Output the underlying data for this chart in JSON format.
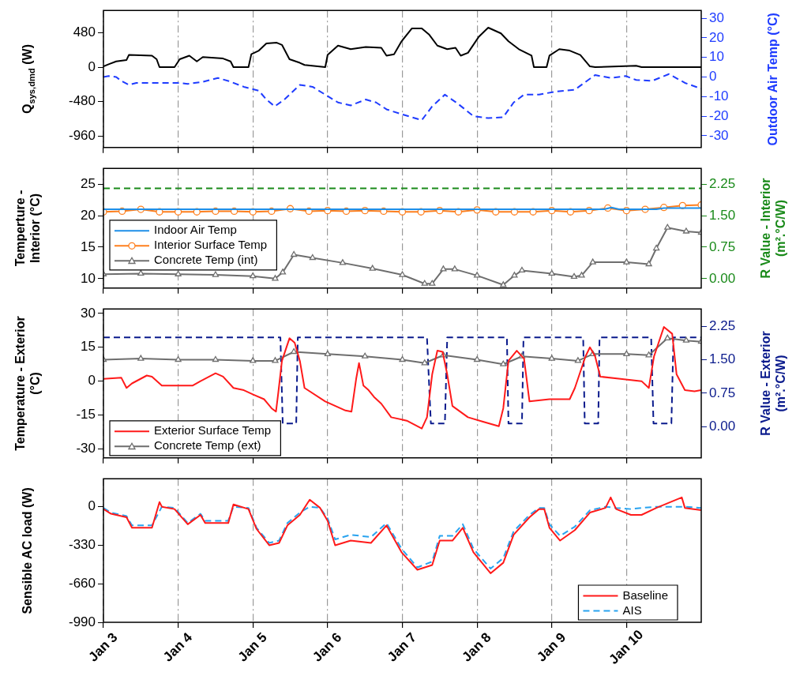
{
  "chart_data": [
    {
      "type": "line",
      "ylabel": "Q$_{sys,dmd}$ (W)",
      "y2label": "Outdoor Air Temp (°C)",
      "xlim": [
        "--01-03",
        "--01-11"
      ],
      "xticks": [
        {
          "value": "--01-03",
          "label": null
        },
        {
          "value": "--01-04",
          "label": null
        },
        {
          "value": "--01-05",
          "label": null
        },
        {
          "value": "--01-06",
          "label": null
        },
        {
          "value": "--01-07",
          "label": null
        },
        {
          "value": "--01-08",
          "label": null
        },
        {
          "value": "--01-09",
          "label": null
        },
        {
          "value": "--01-10",
          "label": null
        }
      ],
      "ylim": [
        -1120,
        790
      ],
      "yticks": [
        -960,
        -480,
        0,
        480
      ],
      "y2lim": [
        -36,
        34
      ],
      "y2ticks": [
        -30,
        -20,
        -10,
        0,
        10,
        20,
        30
      ],
      "grid": "x",
      "tick_labels": "y",
      "series": [
        {
          "color": "#000000",
          "line_style": "solid",
          "x": [
            "--01-03",
            "--01-03T01:40",
            "--01-03T04:05",
            "--01-03T07:25",
            "--01-03T08:10",
            "--01-03T15:35",
            "--01-03T17:05",
            "--01-03T18:00",
            "--01-03T22:50",
            "--01-04T00:30",
            "--01-04T03:35",
            "--01-04T06:00",
            "--01-04T07:55",
            "--01-04T14:25",
            "--01-04T16:50",
            "--01-04T17:45",
            "--01-04T22:35",
            "--01-04T23:30",
            "--01-05T01:55",
            "--01-05T04:20",
            "--01-05T07:40",
            "--01-05T09:20",
            "--01-05T11:45",
            "--01-05T15:05",
            "--01-05T16:35",
            "--01-05T23:15",
            "--01-06",
            "--01-06T03:20",
            "--01-06T07:25",
            "--01-06T12:15",
            "--01-06T17:15",
            "--01-06T18:55",
            "--01-06T21:20",
            "--01-06T23:45",
            "--01-07T03:05",
            "--01-07T06:15",
            "--01-07T08:40",
            "--01-07T11:15",
            "--01-07T14:25",
            "--01-07T17:05",
            "--01-07T18:45",
            "--01-07T21:05",
            "--01-08T00:30",
            "--01-08T03:35",
            "--01-08T07:40",
            "--01-08T10:05",
            "--01-08T13:25",
            "--01-08T17:30",
            "--01-08T18:15",
            "--01-08T22:20",
            "--01-08T23:15",
            "--01-09T02:25",
            "--01-09T05:45",
            "--01-09T09:10",
            "--01-09T12:15",
            "--01-09T13:55",
            "--01-10T03:05",
            "--01-10T04:50",
            "--01-11"
          ],
          "values": [
            10,
            40,
            80,
            100,
            170,
            160,
            110,
            0,
            0,
            110,
            160,
            80,
            140,
            120,
            80,
            0,
            0,
            180,
            230,
            330,
            340,
            310,
            110,
            60,
            30,
            0,
            170,
            300,
            250,
            280,
            270,
            160,
            180,
            360,
            540,
            540,
            450,
            300,
            250,
            270,
            160,
            200,
            420,
            550,
            470,
            360,
            250,
            160,
            0,
            0,
            160,
            250,
            230,
            170,
            10,
            0,
            20,
            0,
            0
          ]
        },
        {
          "color": "#1f3cff",
          "axis": "y2",
          "line_style": "dashed",
          "x": [
            "--01-03",
            "--01-03T01:40",
            "--01-03T04:05",
            "--01-03T05:45",
            "--01-03T08:10",
            "--01-03T10:35",
            "--01-03T23:45",
            "--01-04T03:05",
            "--01-04T07:55",
            "--01-04T12:45",
            "--01-04T16:05",
            "--01-04T21:05",
            "--01-05T01:55",
            "--01-05T04:20",
            "--01-05T07:00",
            "--01-05T10:05",
            "--01-05T15:05",
            "--01-05T19:10",
            "--01-05T23:15",
            "--01-06T03:20",
            "--01-06T07:25",
            "--01-06T12:15",
            "--01-06T15:35",
            "--01-06T18:55",
            "--01-06T23:45",
            "--01-07T06:15",
            "--01-07T09:35",
            "--01-07T13:40",
            "--01-07T17:45",
            "--01-07T22:50",
            "--01-08T03:35",
            "--01-08T08:25",
            "--01-08T11:45",
            "--01-08T15:05",
            "--01-08T19:55",
            "--01-09T00:55",
            "--01-09T07:25",
            "--01-09T10:50",
            "--01-09T13:55",
            "--01-09T18:55",
            "--01-09T23:45",
            "--01-10T03:05",
            "--01-10T08:10",
            "--01-10T13:40",
            "--01-10T18:45",
            "--01-11"
          ],
          "values": [
            0,
            0.5,
            0,
            -2,
            -4,
            -3,
            -3,
            -3.5,
            -2.5,
            -0.5,
            -2,
            -5,
            -7,
            -11.5,
            -15,
            -11.5,
            -4,
            -5,
            -9,
            -13,
            -14.5,
            -11.5,
            -13,
            -16.5,
            -19,
            -22,
            -15,
            -9,
            -13.5,
            -20,
            -21,
            -20.5,
            -13,
            -9,
            -9,
            -7.5,
            -6.5,
            -2.5,
            1,
            -0.5,
            0.5,
            -1.5,
            -2,
            1.5,
            -3,
            -6
          ]
        }
      ]
    },
    {
      "type": "line",
      "ylabel": "Temperture - Interior (°C)",
      "y2label": "R Value - Interior (m².°C/W)",
      "xlim": [
        "--01-03",
        "--01-11"
      ],
      "xticks": [
        {
          "value": "--01-03",
          "label": null
        },
        {
          "value": "--01-04",
          "label": null
        },
        {
          "value": "--01-05",
          "label": null
        },
        {
          "value": "--01-06",
          "label": null
        },
        {
          "value": "--01-07",
          "label": null
        },
        {
          "value": "--01-08",
          "label": null
        },
        {
          "value": "--01-09",
          "label": null
        },
        {
          "value": "--01-10",
          "label": null
        }
      ],
      "ylim": [
        8.5,
        27.5
      ],
      "yticks": [
        10,
        15,
        20,
        25
      ],
      "y2lim": [
        -0.225,
        2.625
      ],
      "y2ticks": [
        {
          "value": 0,
          "label": "0.00"
        },
        {
          "value": 0.75,
          "label": "0.75"
        },
        {
          "value": 1.5,
          "label": "1.50"
        },
        {
          "value": 2.25,
          "label": "2.25"
        }
      ],
      "grid": "x",
      "tick_labels": "y",
      "legend": "bottom left",
      "series": [
        {
          "name": "Indoor Air Temp",
          "color": "#1e8fe8",
          "line_style": "solid",
          "marker": "none",
          "x": [
            "--01-03",
            "--01-09T16:50",
            "--01-09T19:10",
            "--01-09T21:35",
            "--01-10T09:35",
            "--01-10T12:00",
            "--01-11"
          ],
          "values": [
            21,
            21,
            21.3,
            21,
            21,
            21.2,
            21.2
          ]
        },
        {
          "name": "Interior Surface Temp",
          "color": "#ff7f1e",
          "line_style": "solid",
          "marker": "circle",
          "x": [
            "--01-03",
            "--01-03T06:00",
            "--01-03T12:00",
            "--01-03T18:00",
            "--01-04",
            "--01-04T06:00",
            "--01-04T12:00",
            "--01-04T18:00",
            "--01-05",
            "--01-05T06:00",
            "--01-05T12:00",
            "--01-05T18:00",
            "--01-06",
            "--01-06T06:00",
            "--01-06T12:00",
            "--01-06T18:00",
            "--01-07",
            "--01-07T06:00",
            "--01-07T12:00",
            "--01-07T18:00",
            "--01-08",
            "--01-08T06:00",
            "--01-08T12:00",
            "--01-08T18:00",
            "--01-09",
            "--01-09T06:00",
            "--01-09T12:00",
            "--01-09T18:00",
            "--01-10",
            "--01-10T06:00",
            "--01-10T12:00",
            "--01-10T18:00",
            "--01-11"
          ],
          "values": [
            20.6,
            20.7,
            21.0,
            20.6,
            20.6,
            20.6,
            20.7,
            20.7,
            20.6,
            20.7,
            21.1,
            20.7,
            20.8,
            20.7,
            20.8,
            20.7,
            20.6,
            20.6,
            20.8,
            20.6,
            20.9,
            20.6,
            20.6,
            20.6,
            20.8,
            20.6,
            20.8,
            21.2,
            20.8,
            21.0,
            21.3,
            21.6,
            21.7
          ]
        },
        {
          "name": "Concrete Temp (int)",
          "color": "#6e6e6e",
          "line_style": "solid",
          "marker": "triangle",
          "x": [
            "--01-03",
            "--01-03T12:00",
            "--01-04",
            "--01-04T12:00",
            "--01-05",
            "--01-05T07:10",
            "--01-05T09:35",
            "--01-05T13:10",
            "--01-05T19:10",
            "--01-06T04:50",
            "--01-06T14:25",
            "--01-07",
            "--01-07T07:10",
            "--01-07T09:35",
            "--01-07T13:10",
            "--01-07T16:50",
            "--01-08",
            "--01-08T08:25",
            "--01-08T12:00",
            "--01-08T14:25",
            "--01-09",
            "--01-09T07:10",
            "--01-09T09:35",
            "--01-09T13:10",
            "--01-10",
            "--01-10T07:10",
            "--01-10T09:35",
            "--01-10T13:10",
            "--01-10T19:10",
            "--01-11"
          ],
          "values": [
            10.7,
            10.8,
            10.7,
            10.6,
            10.4,
            10.0,
            11,
            13.8,
            13.3,
            12.5,
            11.6,
            10.6,
            9.2,
            9.2,
            11.5,
            11.5,
            10.5,
            9.0,
            10.5,
            11.3,
            10.8,
            10.3,
            10.5,
            12.6,
            12.6,
            12.3,
            14.8,
            18.1,
            17.5,
            17.3
          ]
        },
        {
          "color": "#1a8a1a",
          "axis": "y2",
          "line_style": "dashed",
          "marker": "none",
          "x": [
            "--01-03",
            "--01-11"
          ],
          "values": [
            2.15,
            2.15
          ]
        }
      ]
    },
    {
      "type": "line",
      "ylabel": "Temperature - Exterior (°C)",
      "y2label": "R Value - Exterior (m².°C/W)",
      "xlim": [
        "--01-03",
        "--01-11"
      ],
      "xticks": [
        {
          "value": "--01-03",
          "label": null
        },
        {
          "value": "--01-04",
          "label": null
        },
        {
          "value": "--01-05",
          "label": null
        },
        {
          "value": "--01-06",
          "label": null
        },
        {
          "value": "--01-07",
          "label": null
        },
        {
          "value": "--01-08",
          "label": null
        },
        {
          "value": "--01-09",
          "label": null
        },
        {
          "value": "--01-10",
          "label": null
        }
      ],
      "ylim": [
        -34,
        32
      ],
      "yticks": [
        -30,
        -15,
        0,
        15,
        30
      ],
      "y2lim": [
        -0.7,
        2.64
      ],
      "y2ticks": [
        {
          "value": 0,
          "label": "0.00"
        },
        {
          "value": 0.75,
          "label": "0.75"
        },
        {
          "value": 1.5,
          "label": "1.50"
        },
        {
          "value": 2.25,
          "label": "2.25"
        }
      ],
      "grid": "x",
      "tick_labels": "y",
      "legend": "bottom left",
      "series": [
        {
          "name": "Exterior Surface Temp",
          "color": "#ff1a1a",
          "line_style": "solid",
          "marker": "none",
          "x": [
            "--01-03",
            "--01-03T05:45",
            "--01-03T07:25",
            "--01-03T09:10",
            "--01-03T13:55",
            "--01-03T15:35",
            "--01-03T18:45",
            "--01-04T04:35",
            "--01-04T07:10",
            "--01-04T12:00",
            "--01-04T14:25",
            "--01-04T17:45",
            "--01-04T21:05",
            "--01-05T00:15",
            "--01-05T03:35",
            "--01-05T06:00",
            "--01-05T07:25",
            "--01-05T08:10",
            "--01-05T09:20",
            "--01-05T11:45",
            "--01-05T13:25",
            "--01-05T15:05",
            "--01-05T16:35",
            "--01-05T23:15",
            "--01-06T05:45",
            "--01-06T07:40",
            "--01-06T09:10",
            "--01-06T10:05",
            "--01-06T11:30",
            "--01-06T13:10",
            "--01-06T14:55",
            "--01-06T17:15",
            "--01-06T20:25",
            "--01-07T01:25",
            "--01-07T06:15",
            "--01-07T07:55",
            "--01-07T09:35",
            "--01-07T11:15",
            "--01-07T12:55",
            "--01-07T14:25",
            "--01-07T16:05",
            "--01-07T21:05",
            "--01-08T01:55",
            "--01-08T07:00",
            "--01-08T08:25",
            "--01-08T10:05",
            "--01-08T12:45",
            "--01-08T15:05",
            "--01-08T16:50",
            "--01-08T23:15",
            "--01-09T05:45",
            "--01-09T07:25",
            "--01-09T10:50",
            "--01-09T12:15",
            "--01-09T13:55",
            "--01-09T15:35",
            "--01-09T22:05",
            "--01-10T04:50",
            "--01-10T07:10",
            "--01-10T08:50",
            "--01-10T12:00",
            "--01-10T14:40",
            "--01-10T16:05",
            "--01-10T18:45",
            "--01-10T21:50",
            "--01-11"
          ],
          "values": [
            1,
            1.5,
            -3,
            -1,
            2.5,
            2,
            -2,
            -2,
            0,
            3.5,
            2,
            -3,
            -4,
            -6,
            -8,
            -12,
            -13.5,
            -5,
            9,
            19,
            17,
            9,
            -3,
            -9,
            -13,
            -13.5,
            1,
            8,
            -2,
            -4,
            -7,
            -10,
            -16,
            -17.5,
            -21,
            -16,
            3,
            13.5,
            13,
            3,
            -11,
            -16,
            -18,
            -20,
            -12,
            9,
            13.5,
            10,
            -9,
            -8,
            -8,
            -3,
            11,
            15,
            11,
            2,
            1,
            0,
            -3,
            11,
            24,
            21,
            3,
            -4,
            -4.5,
            -4
          ]
        },
        {
          "name": "Concrete Temp (ext)",
          "color": "#6e6e6e",
          "line_style": "solid",
          "marker": "triangle",
          "x": [
            "--01-03",
            "--01-03T12:00",
            "--01-04",
            "--01-04T12:00",
            "--01-05",
            "--01-05T07:10",
            "--01-05T13:10",
            "--01-06",
            "--01-06T12:00",
            "--01-07",
            "--01-07T07:10",
            "--01-07T13:10",
            "--01-08",
            "--01-08T08:25",
            "--01-08T14:25",
            "--01-09",
            "--01-09T08:25",
            "--01-09T13:10",
            "--01-10",
            "--01-10T07:10",
            "--01-10T13:10",
            "--01-10T19:10",
            "--01-11"
          ],
          "values": [
            9.5,
            10,
            9.5,
            9.5,
            9,
            9,
            13,
            12,
            11,
            9.5,
            8,
            11.5,
            9.5,
            7.5,
            11,
            10,
            9,
            12,
            12,
            11.5,
            19,
            18,
            17.5
          ]
        },
        {
          "color": "#0a1a8c",
          "axis": "y2",
          "line_style": "dashed",
          "marker": "none",
          "x": [
            "--01-03",
            "--01-05T08:50",
            "--01-05T09:35",
            "--01-05T13:55",
            "--01-05T14:25",
            "--01-07T07:55",
            "--01-07T09:10",
            "--01-07T13:40",
            "--01-07T14:25",
            "--01-08T09:35",
            "--01-08T10:05",
            "--01-08T14:25",
            "--01-08T14:55",
            "--01-09T10:05",
            "--01-09T10:35",
            "--01-09T14:55",
            "--01-09T15:20",
            "--01-10T07:55",
            "--01-10T08:40",
            "--01-10T14:25",
            "--01-10T15:05",
            "--01-11"
          ],
          "values": [
            2,
            2,
            0.07,
            0.07,
            2,
            2,
            0.07,
            0.07,
            2,
            2,
            0.07,
            0.07,
            2,
            2,
            0.07,
            0.07,
            2,
            2,
            0.07,
            0.07,
            2,
            2
          ]
        }
      ]
    },
    {
      "type": "line",
      "ylabel": "Sensible AC load (W)",
      "xlim": [
        "--01-03",
        "--01-11"
      ],
      "xticks": [
        {
          "value": "--01-03",
          "label": "Jan 3"
        },
        {
          "value": "--01-04",
          "label": "Jan 4"
        },
        {
          "value": "--01-05",
          "label": "Jan 5"
        },
        {
          "value": "--01-06",
          "label": "Jan 6"
        },
        {
          "value": "--01-07",
          "label": "Jan 7"
        },
        {
          "value": "--01-08",
          "label": "Jan 8"
        },
        {
          "value": "--01-09",
          "label": "Jan 9"
        },
        {
          "value": "--01-10",
          "label": "Jan 10"
        }
      ],
      "ylim": [
        -990,
        240
      ],
      "yticks": [
        -990,
        -660,
        -330,
        0
      ],
      "grid": "x",
      "legend": "bottom right",
      "series": [
        {
          "name": "Baseline",
          "color": "#ff1a1a",
          "line_style": "solid",
          "x": [
            "--01-03",
            "--01-03T02:25",
            "--01-03T07:25",
            "--01-03T09:10",
            "--01-03T15:35",
            "--01-03T18:00",
            "--01-03T18:45",
            "--01-03T22:50",
            "--01-04T03:05",
            "--01-04T07:10",
            "--01-04T08:40",
            "--01-04T16:05",
            "--01-04T17:45",
            "--01-04T22:35",
            "--01-05T01:10",
            "--01-05T05:15",
            "--01-05T08:25",
            "--01-05T11:05",
            "--01-05T15:05",
            "--01-05T18:15",
            "--01-05T21:35",
            "--01-06",
            "--01-06T02:25",
            "--01-06T07:25",
            "--01-06T13:55",
            "--01-06T18:55",
            "--01-06T23:45",
            "--01-07T04:50",
            "--01-07T09:35",
            "--01-07T12:00",
            "--01-07T16:05",
            "--01-07T19:25",
            "--01-07T22:50",
            "--01-08T04:20",
            "--01-08T08:25",
            "--01-08T11:45",
            "--01-08T16:50",
            "--01-08T19:55",
            "--01-08T21:35",
            "--01-08T23:15",
            "--01-09T02:40",
            "--01-09T07:25",
            "--01-09T12:15",
            "--01-09T17:15",
            "--01-09T18:55",
            "--01-09T20:40",
            "--01-10T01:25",
            "--01-10T04:50",
            "--01-10T09:35",
            "--01-10T17:45",
            "--01-10T18:45",
            "--01-11"
          ],
          "values": [
            -20,
            -60,
            -90,
            -180,
            -180,
            40,
            0,
            -20,
            -150,
            -70,
            -140,
            -140,
            20,
            -20,
            -190,
            -330,
            -310,
            -160,
            -70,
            60,
            -10,
            -120,
            -330,
            -290,
            -310,
            -160,
            -390,
            -540,
            -500,
            -290,
            -290,
            -180,
            -390,
            -570,
            -480,
            -240,
            -90,
            -20,
            -20,
            -180,
            -290,
            -200,
            -50,
            -10,
            80,
            -20,
            -70,
            -70,
            -10,
            80,
            -10,
            -30
          ]
        },
        {
          "name": "AIS",
          "color": "#29a3ef",
          "line_style": "dashed",
          "x": [
            "--01-03",
            "--01-03T02:25",
            "--01-03T07:25",
            "--01-03T09:10",
            "--01-03T15:35",
            "--01-03T18:45",
            "--01-03T22:50",
            "--01-04T03:05",
            "--01-04T07:10",
            "--01-04T08:40",
            "--01-04T16:05",
            "--01-04T17:45",
            "--01-04T22:35",
            "--01-05T01:10",
            "--01-05T05:15",
            "--01-05T08:25",
            "--01-05T11:05",
            "--01-05T15:05",
            "--01-05T18:15",
            "--01-05T21:35",
            "--01-06",
            "--01-06T02:25",
            "--01-06T07:25",
            "--01-06T13:55",
            "--01-06T18:55",
            "--01-06T23:45",
            "--01-07T04:50",
            "--01-07T09:35",
            "--01-07T12:00",
            "--01-07T16:05",
            "--01-07T19:25",
            "--01-07T22:50",
            "--01-08T04:20",
            "--01-08T08:25",
            "--01-08T11:45",
            "--01-08T16:50",
            "--01-08T19:55",
            "--01-08T21:35",
            "--01-08T23:15",
            "--01-09T02:40",
            "--01-09T07:25",
            "--01-09T12:15",
            "--01-09T17:15",
            "--01-09T20:40",
            "--01-10T01:25",
            "--01-10T04:50",
            "--01-10T09:35",
            "--01-10T18:45",
            "--01-11"
          ],
          "values": [
            -10,
            -50,
            -80,
            -160,
            -160,
            0,
            -10,
            -140,
            -60,
            -120,
            -120,
            0,
            -10,
            -180,
            -310,
            -290,
            -140,
            -50,
            0,
            -10,
            -100,
            -280,
            -240,
            -260,
            -140,
            -360,
            -520,
            -470,
            -250,
            -250,
            -150,
            -360,
            -530,
            -440,
            -210,
            -70,
            -10,
            -10,
            -150,
            -250,
            -170,
            -30,
            0,
            -10,
            -20,
            -10,
            0,
            0,
            -10
          ]
        }
      ]
    }
  ]
}
